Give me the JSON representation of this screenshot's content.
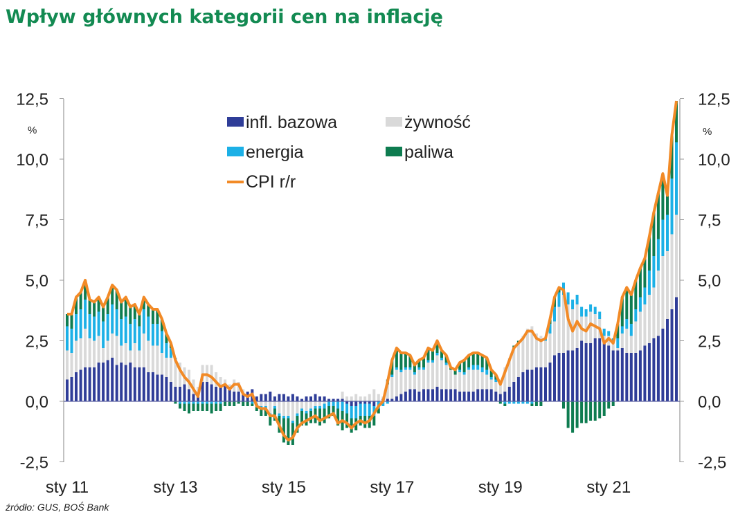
{
  "title": "Wpływ głównych kategorii cen na inflację",
  "source": "źródło: GUS, BOŚ Bank",
  "colors": {
    "title": "#138a52",
    "core": "#2f3d98",
    "food": "#d9d9d9",
    "energy": "#1cb0e6",
    "fuel": "#0e7c50",
    "cpi": "#f28a26",
    "axis": "#999999"
  },
  "chart_data": {
    "type": "bar",
    "stacked": true,
    "title": "Wpływ głównych kategorii cen na inflację",
    "x_start": "2011-01",
    "x_end": "2022-04",
    "frequency": "monthly",
    "x_tick_labels": [
      "sty 11",
      "sty 13",
      "sty 15",
      "sty 17",
      "sty 19",
      "sty 21"
    ],
    "y_unit_left": "%",
    "y_unit_right": "%",
    "y_tick_labels": [
      "12,5",
      "10,0",
      "7,5",
      "5,0",
      "2,5",
      "0,0",
      "-2,5"
    ],
    "y_ticks": [
      12.5,
      10,
      7.5,
      5,
      2.5,
      0,
      -2.5
    ],
    "ylim": [
      -2.5,
      12.5
    ],
    "grid": false,
    "legend_position": "top-center",
    "series": [
      {
        "name": "infl. bazowa",
        "kind": "bar",
        "color": "#2f3d98",
        "values": [
          0.9,
          1.0,
          1.2,
          1.3,
          1.4,
          1.4,
          1.4,
          1.6,
          1.6,
          1.7,
          1.8,
          1.5,
          1.6,
          1.5,
          1.6,
          1.4,
          1.4,
          1.4,
          1.2,
          1.2,
          1.1,
          1.1,
          1.0,
          0.8,
          0.6,
          0.6,
          0.7,
          0.5,
          0.3,
          0.3,
          0.8,
          0.8,
          0.7,
          0.6,
          0.6,
          0.7,
          0.6,
          0.4,
          0.4,
          0.3,
          0.4,
          0.5,
          0.2,
          0.3,
          0.3,
          0.4,
          0.2,
          0.3,
          0.3,
          0.2,
          0.3,
          0.2,
          0.1,
          0.2,
          0.2,
          0.3,
          0.2,
          0.2,
          0.1,
          0.1,
          0.1,
          0.1,
          -0.1,
          -0.2,
          -0.2,
          -0.1,
          -0.1,
          -0.1,
          -0.2,
          0.0,
          0.1,
          0.1,
          0.1,
          0.2,
          0.3,
          0.4,
          0.5,
          0.5,
          0.4,
          0.5,
          0.5,
          0.5,
          0.6,
          0.5,
          0.5,
          0.5,
          0.5,
          0.4,
          0.4,
          0.4,
          0.4,
          0.5,
          0.5,
          0.5,
          0.5,
          0.4,
          0.3,
          0.4,
          0.6,
          0.8,
          1.0,
          1.2,
          1.3,
          1.3,
          1.4,
          1.4,
          1.4,
          1.6,
          1.9,
          2.0,
          2.0,
          2.1,
          2.1,
          2.2,
          2.5,
          2.4,
          2.4,
          2.6,
          2.6,
          2.5,
          2.3,
          2.1,
          2.1,
          2.2,
          2.0,
          2.0,
          2.0,
          2.1,
          2.3,
          2.4,
          2.6,
          2.7,
          3.0,
          3.4,
          3.8,
          4.3
        ]
      },
      {
        "name": "żywność",
        "kind": "bar",
        "color": "#d9d9d9",
        "values": [
          1.2,
          1.0,
          1.3,
          1.3,
          1.6,
          1.2,
          1.1,
          1.1,
          0.6,
          0.8,
          1.0,
          1.2,
          0.7,
          0.9,
          0.5,
          1.0,
          0.7,
          1.4,
          1.3,
          1.1,
          1.2,
          0.9,
          0.8,
          1.0,
          1.1,
          1.0,
          0.7,
          0.8,
          0.6,
          0.3,
          0.7,
          0.7,
          0.8,
          0.6,
          0.4,
          0.2,
          0.1,
          0.5,
          0.4,
          0.2,
          0.0,
          0.0,
          -0.1,
          -0.2,
          -0.2,
          -0.5,
          -0.2,
          -0.5,
          -0.6,
          -0.6,
          -0.8,
          -0.5,
          -0.3,
          -0.4,
          -0.3,
          -0.2,
          -0.2,
          -0.1,
          0.0,
          0.0,
          0.0,
          0.3,
          0.2,
          0.2,
          0.3,
          0.2,
          0.2,
          0.3,
          0.5,
          0.3,
          0.1,
          0.6,
          0.9,
          1.1,
          0.9,
          0.9,
          0.8,
          0.6,
          0.9,
          0.8,
          1.1,
          1.1,
          1.3,
          1.2,
          1.0,
          0.8,
          0.6,
          0.8,
          0.7,
          0.9,
          0.9,
          0.8,
          0.7,
          0.6,
          0.4,
          0.4,
          0.5,
          1.0,
          1.2,
          1.4,
          1.4,
          1.5,
          1.7,
          1.8,
          1.4,
          1.3,
          1.1,
          1.2,
          1.4,
          1.9,
          2.4,
          1.9,
          1.7,
          1.8,
          1.0,
          1.1,
          1.3,
          1.0,
          0.8,
          0.2,
          0.4,
          0.3,
          0.1,
          0.6,
          1.0,
          0.7,
          1.3,
          1.6,
          1.7,
          2.0,
          2.1,
          2.7,
          3.0,
          2.8,
          3.1,
          3.4
        ]
      },
      {
        "name": "energia",
        "kind": "bar",
        "color": "#1cb0e6",
        "values": [
          1.0,
          1.0,
          1.1,
          1.2,
          1.2,
          1.0,
          1.0,
          1.0,
          1.1,
          1.1,
          1.2,
          1.1,
          1.1,
          1.1,
          1.1,
          1.0,
          1.0,
          1.0,
          1.0,
          0.9,
          0.9,
          0.9,
          0.6,
          0.4,
          0.1,
          -0.1,
          -0.1,
          -0.1,
          -0.1,
          -0.1,
          -0.1,
          -0.1,
          -0.1,
          -0.1,
          -0.1,
          0.0,
          0.0,
          0.0,
          0.0,
          0.0,
          0.0,
          -0.1,
          -0.1,
          -0.1,
          -0.1,
          -0.1,
          -0.1,
          -0.1,
          -0.1,
          -0.1,
          -0.1,
          -0.1,
          -0.1,
          -0.1,
          -0.1,
          -0.1,
          -0.1,
          -0.2,
          -0.2,
          -0.2,
          -0.3,
          -0.4,
          -0.4,
          -0.5,
          -0.5,
          -0.5,
          -0.5,
          -0.5,
          -0.4,
          -0.3,
          -0.2,
          -0.1,
          0.1,
          0.1,
          0.1,
          0.1,
          0.1,
          0.1,
          0.1,
          0.1,
          0.1,
          0.1,
          0.1,
          0.1,
          0.1,
          0.0,
          0.0,
          0.1,
          0.1,
          0.1,
          0.2,
          0.2,
          0.2,
          0.2,
          0.1,
          0.1,
          0.0,
          -0.1,
          -0.1,
          -0.1,
          -0.1,
          -0.1,
          -0.1,
          -0.1,
          0.0,
          0.0,
          0.1,
          0.4,
          0.6,
          0.6,
          0.5,
          0.5,
          0.4,
          0.4,
          0.4,
          0.3,
          0.3,
          0.3,
          0.3,
          0.3,
          0.2,
          0.2,
          0.4,
          0.3,
          0.4,
          0.5,
          0.5,
          0.6,
          0.7,
          1.0,
          1.3,
          1.3,
          1.5,
          1.5,
          2.3,
          3.0
        ]
      },
      {
        "name": "paliwa",
        "kind": "bar",
        "color": "#0e7c50",
        "values": [
          0.5,
          0.6,
          0.7,
          0.7,
          0.8,
          0.6,
          0.6,
          0.6,
          0.6,
          0.7,
          0.8,
          0.8,
          0.7,
          0.8,
          0.7,
          0.6,
          0.5,
          0.5,
          0.5,
          0.6,
          0.6,
          0.5,
          0.4,
          0.2,
          -0.1,
          -0.2,
          -0.3,
          -0.4,
          -0.3,
          -0.3,
          -0.3,
          -0.3,
          -0.4,
          -0.3,
          -0.3,
          -0.2,
          -0.2,
          -0.2,
          -0.1,
          -0.2,
          -0.2,
          -0.1,
          -0.2,
          -0.3,
          -0.3,
          -0.4,
          -0.5,
          -0.7,
          -1.0,
          -1.1,
          -0.9,
          -0.7,
          -0.6,
          -0.5,
          -0.5,
          -0.6,
          -0.7,
          -0.6,
          -0.5,
          -0.4,
          -0.7,
          -0.8,
          -0.6,
          -0.6,
          -0.5,
          -0.4,
          -0.5,
          -0.5,
          -0.4,
          -0.2,
          0.0,
          0.2,
          0.6,
          0.8,
          0.7,
          0.6,
          0.5,
          0.3,
          0.3,
          0.4,
          0.5,
          0.4,
          0.5,
          0.3,
          0.3,
          0.1,
          0.2,
          0.3,
          0.5,
          0.5,
          0.5,
          0.5,
          0.5,
          0.5,
          0.3,
          0.2,
          -0.1,
          -0.1,
          0.0,
          0.1,
          0.1,
          0.0,
          0.0,
          -0.1,
          -0.2,
          -0.2,
          0.0,
          0.2,
          0.4,
          0.2,
          -0.3,
          -1.1,
          -1.3,
          -1.1,
          -0.9,
          -0.9,
          -0.8,
          -0.8,
          -0.7,
          -0.6,
          -0.3,
          -0.2,
          0.6,
          1.2,
          1.3,
          1.2,
          1.2,
          1.2,
          1.2,
          1.4,
          1.8,
          1.9,
          1.9,
          0.8,
          1.8,
          1.7
        ]
      },
      {
        "name": "CPI r/r",
        "kind": "line",
        "color": "#f28a26",
        "values": [
          3.6,
          3.6,
          4.3,
          4.5,
          5.0,
          4.2,
          4.1,
          4.3,
          3.9,
          4.3,
          4.8,
          4.6,
          4.1,
          4.3,
          3.9,
          4.0,
          3.6,
          4.3,
          4.0,
          3.8,
          3.8,
          3.4,
          2.8,
          2.4,
          1.7,
          1.3,
          1.0,
          0.8,
          0.5,
          0.2,
          1.1,
          1.1,
          1.0,
          0.8,
          0.6,
          0.7,
          0.5,
          0.7,
          0.7,
          0.3,
          0.2,
          0.3,
          -0.2,
          -0.3,
          -0.3,
          -0.6,
          -0.6,
          -1.0,
          -1.4,
          -1.6,
          -1.5,
          -1.1,
          -0.9,
          -0.8,
          -0.7,
          -0.6,
          -0.8,
          -0.7,
          -0.6,
          -0.5,
          -0.9,
          -0.8,
          -0.9,
          -1.1,
          -0.9,
          -0.8,
          -0.9,
          -0.8,
          -0.5,
          -0.2,
          0.0,
          0.8,
          1.7,
          2.2,
          2.0,
          2.0,
          1.9,
          1.5,
          1.7,
          1.8,
          2.2,
          2.1,
          2.5,
          2.1,
          1.9,
          1.4,
          1.3,
          1.6,
          1.7,
          1.9,
          2.0,
          2.0,
          1.9,
          1.8,
          1.3,
          1.1,
          0.7,
          1.2,
          1.7,
          2.2,
          2.4,
          2.6,
          2.9,
          2.9,
          2.6,
          2.5,
          2.6,
          3.4,
          4.3,
          4.7,
          4.6,
          3.4,
          2.9,
          3.3,
          3.0,
          2.9,
          3.2,
          3.1,
          3.0,
          2.4,
          2.6,
          2.4,
          3.2,
          4.3,
          4.7,
          4.4,
          5.0,
          5.5,
          5.9,
          6.8,
          7.8,
          8.6,
          9.4,
          8.5,
          11.0,
          12.4
        ]
      }
    ]
  }
}
